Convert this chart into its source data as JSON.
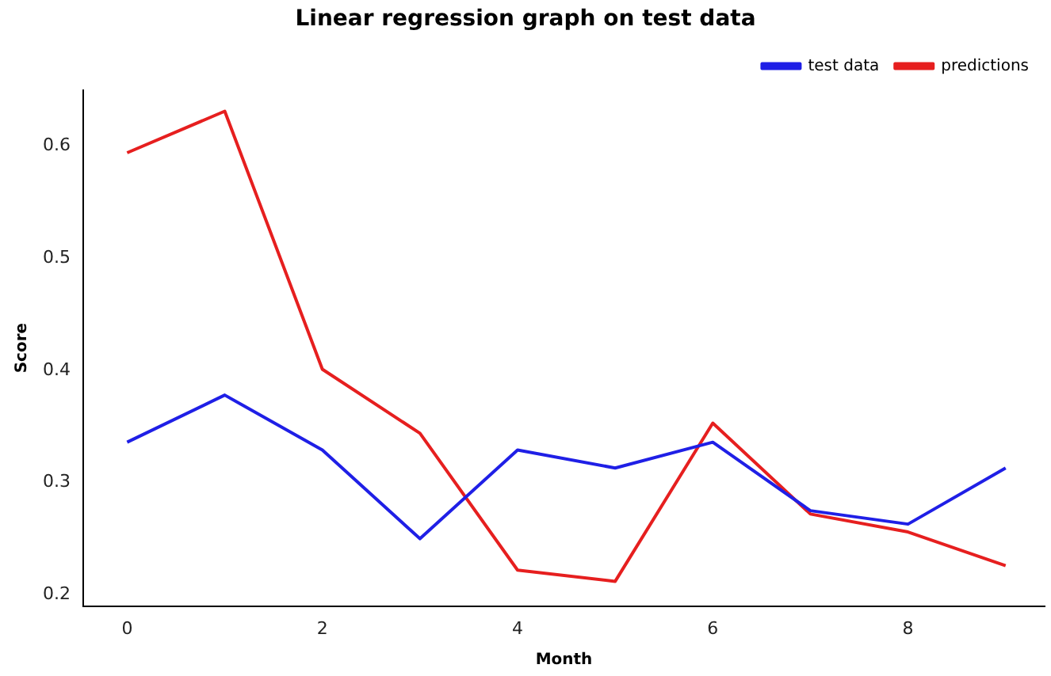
{
  "chart_data": {
    "type": "line",
    "title": "Linear regression graph on test data",
    "xlabel": "Month",
    "ylabel": "Score",
    "x": [
      0,
      1,
      2,
      3,
      4,
      5,
      6,
      7,
      8,
      9
    ],
    "series": [
      {
        "name": "test data",
        "color": "#1f1fe6",
        "values": [
          0.336,
          0.378,
          0.329,
          0.25,
          0.329,
          0.313,
          0.336,
          0.275,
          0.263,
          0.313
        ]
      },
      {
        "name": "predictions",
        "color": "#e61f1f",
        "values": [
          0.594,
          0.631,
          0.401,
          0.344,
          0.222,
          0.212,
          0.353,
          0.272,
          0.256,
          0.226
        ]
      }
    ],
    "xlim": [
      -0.45,
      9.4
    ],
    "ylim": [
      0.19,
      0.65
    ],
    "xticks": [
      0,
      2,
      4,
      6,
      8
    ],
    "yticks": [
      0.2,
      0.3,
      0.4,
      0.5,
      0.6
    ],
    "grid": false,
    "legend": "top right",
    "marker": "none",
    "line_style": "solid"
  }
}
